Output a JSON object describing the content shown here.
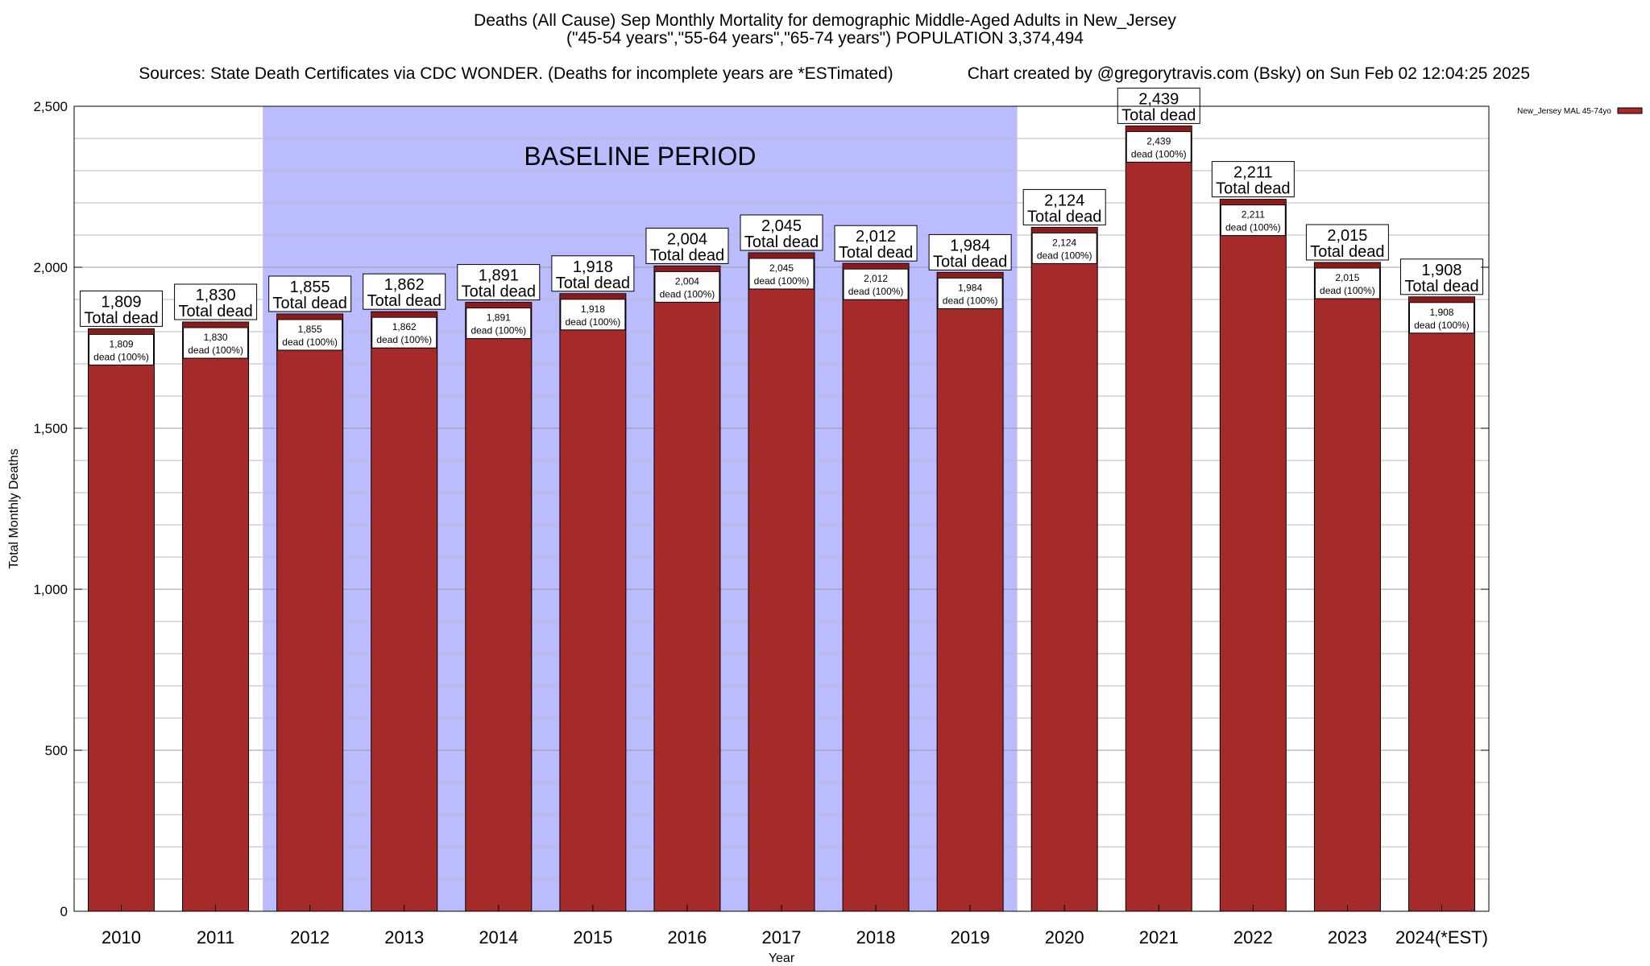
{
  "title_lines": [
    "Deaths (All Cause) Sep Monthly Mortality for demographic Middle-Aged Adults in New_Jersey",
    "(\"45-54 years\",\"55-64 years\",\"65-74 years\") POPULATION 3,374,494",
    "Sources: State Death Certificates via CDC WONDER. (Deaths for incomplete years are *ESTimated)",
    "Chart created by @gregorytravis.com (Bsky) on Sun Feb 02 12:04:25 2025"
  ],
  "colors": {
    "bar": "#a52a2a",
    "bar_cap": "#8b1a1a",
    "baseline_band": "#bbbbff",
    "grid": "#bbbbbb"
  },
  "chart_data": {
    "type": "bar",
    "categories": [
      "2010",
      "2011",
      "2012",
      "2013",
      "2014",
      "2015",
      "2016",
      "2017",
      "2018",
      "2019",
      "2020",
      "2021",
      "2022",
      "2023",
      "2024(*EST)"
    ],
    "series": [
      {
        "name": "New_Jersey MAL 45-74yo",
        "values": [
          1809,
          1830,
          1855,
          1862,
          1891,
          1918,
          2004,
          2045,
          2012,
          1984,
          2124,
          2439,
          2211,
          2015,
          1908
        ]
      }
    ],
    "value_labels": [
      "1,809",
      "1,830",
      "1,855",
      "1,862",
      "1,891",
      "1,918",
      "2,004",
      "2,045",
      "2,012",
      "1,984",
      "2,124",
      "2,439",
      "2,211",
      "2,015",
      "1,908"
    ],
    "total_label_suffix": "Total dead",
    "inner_label_suffix": "dead (100%)",
    "xlabel": "Year",
    "ylabel": "Total Monthly Deaths",
    "ylim": [
      0,
      2500
    ],
    "yticks": [
      0,
      500,
      1000,
      1500,
      2000,
      2500
    ],
    "ytick_labels": [
      "0",
      "500",
      "1,000",
      "1,500",
      "2,000",
      "2,500"
    ],
    "minor_grid_step": 100,
    "grid": true,
    "legend_position": "top-right",
    "baseline": {
      "label": "BASELINE PERIOD",
      "start": "2012",
      "end": "2019"
    }
  }
}
